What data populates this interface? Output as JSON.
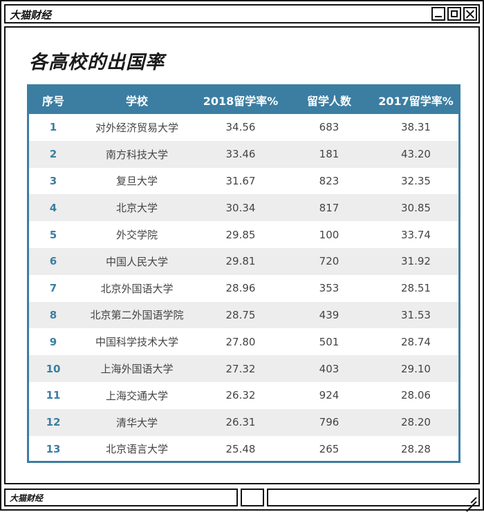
{
  "window": {
    "title": "大猫财经",
    "controls": [
      "minimize-icon",
      "maximize-icon",
      "close-icon"
    ]
  },
  "page_title": "各高校的出国率",
  "table": {
    "columns": [
      "序号",
      "学校",
      "2018留学率%",
      "留学人数",
      "2017留学率%"
    ],
    "rows": [
      {
        "idx": "1",
        "school": "对外经济贸易大学",
        "rate2018": "34.56",
        "count": "683",
        "rate2017": "38.31"
      },
      {
        "idx": "2",
        "school": "南方科技大学",
        "rate2018": "33.46",
        "count": "181",
        "rate2017": "43.20"
      },
      {
        "idx": "3",
        "school": "复旦大学",
        "rate2018": "31.67",
        "count": "823",
        "rate2017": "32.35"
      },
      {
        "idx": "4",
        "school": "北京大学",
        "rate2018": "30.34",
        "count": "817",
        "rate2017": "30.85"
      },
      {
        "idx": "5",
        "school": "外交学院",
        "rate2018": "29.85",
        "count": "100",
        "rate2017": "33.74"
      },
      {
        "idx": "6",
        "school": "中国人民大学",
        "rate2018": "29.81",
        "count": "720",
        "rate2017": "31.92"
      },
      {
        "idx": "7",
        "school": "北京外国语大学",
        "rate2018": "28.96",
        "count": "353",
        "rate2017": "28.51"
      },
      {
        "idx": "8",
        "school": "北京第二外国语学院",
        "rate2018": "28.75",
        "count": "439",
        "rate2017": "31.53"
      },
      {
        "idx": "9",
        "school": "中国科学技术大学",
        "rate2018": "27.80",
        "count": "501",
        "rate2017": "28.74"
      },
      {
        "idx": "10",
        "school": "上海外国语大学",
        "rate2018": "27.32",
        "count": "403",
        "rate2017": "29.10"
      },
      {
        "idx": "11",
        "school": "上海交通大学",
        "rate2018": "26.32",
        "count": "924",
        "rate2017": "28.06"
      },
      {
        "idx": "12",
        "school": "清华大学",
        "rate2018": "26.31",
        "count": "796",
        "rate2017": "28.20"
      },
      {
        "idx": "13",
        "school": "北京语言大学",
        "rate2018": "25.48",
        "count": "265",
        "rate2017": "28.28"
      }
    ]
  },
  "statusbar": {
    "label": "大猫财经"
  },
  "colors": {
    "accent": "#3b7ea1",
    "stripe": "#ededed",
    "frame": "#111111"
  }
}
